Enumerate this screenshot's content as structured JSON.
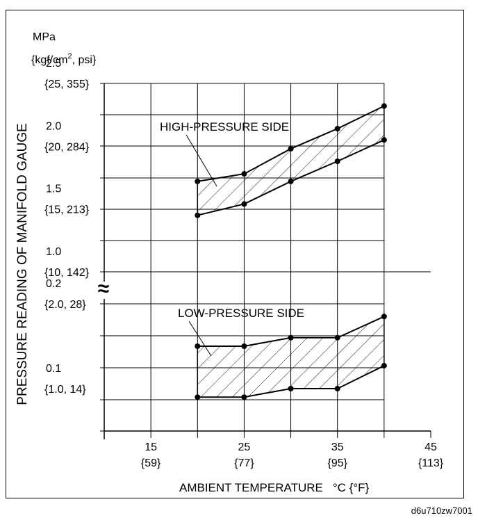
{
  "chart_data": {
    "type": "line",
    "ylabel": "PRESSURE READING OF MANIFOLD GAUGE",
    "yunit_line1": "MPa",
    "yunit_line2_pre": "{kgf/cm",
    "yunit_line2_sup": "2",
    "yunit_line2_post": ", psi}",
    "xlabel": "AMBIENT TEMPERATURE",
    "xunit": "°C {°F}",
    "xlim": [
      10,
      45
    ],
    "x_ticks": [
      {
        "value": 15,
        "label": "15",
        "sub": "{59}"
      },
      {
        "value": 25,
        "label": "25",
        "sub": "{77}"
      },
      {
        "value": 35,
        "label": "35",
        "sub": "{95}"
      },
      {
        "value": 45,
        "label": "45",
        "sub": "{113}"
      }
    ],
    "break_symbol": "≈",
    "panels": [
      {
        "name": "high",
        "ylim": [
          1.0,
          2.5
        ],
        "y_ticks": [
          {
            "value": 2.5,
            "label": "2.5",
            "sub": "{25, 355}"
          },
          {
            "value": 2.0,
            "label": "2.0",
            "sub": "{20, 284}"
          },
          {
            "value": 1.5,
            "label": "1.5",
            "sub": "{15, 213}"
          },
          {
            "value": 1.0,
            "label": "1.0",
            "sub": "{10, 142}"
          }
        ],
        "annotation": "HIGH-PRESSURE SIDE",
        "series": [
          {
            "values": [
              [
                20,
                1.72
              ],
              [
                25,
                1.78
              ],
              [
                30,
                1.98
              ],
              [
                35,
                2.14
              ],
              [
                40,
                2.32
              ]
            ]
          },
          {
            "values": [
              [
                20,
                1.45
              ],
              [
                25,
                1.54
              ],
              [
                30,
                1.72
              ],
              [
                35,
                1.88
              ],
              [
                40,
                2.05
              ]
            ]
          }
        ]
      },
      {
        "name": "low",
        "ylim": [
          0.05,
          0.2
        ],
        "y_ticks": [
          {
            "value": 0.2,
            "label": "0.2",
            "sub": "{2.0, 28}"
          },
          {
            "value": 0.1,
            "label": "0.1",
            "sub": "{1.0, 14}"
          }
        ],
        "annotation": "LOW-PRESSURE SIDE",
        "series": [
          {
            "values": [
              [
                20,
                0.15
              ],
              [
                25,
                0.15
              ],
              [
                30,
                0.16
              ],
              [
                35,
                0.16
              ],
              [
                40,
                0.185
              ]
            ]
          },
          {
            "values": [
              [
                20,
                0.09
              ],
              [
                25,
                0.09
              ],
              [
                30,
                0.1
              ],
              [
                35,
                0.1
              ],
              [
                40,
                0.127
              ]
            ]
          }
        ]
      }
    ],
    "grid": true
  },
  "doc_code": "d6u710zw7001"
}
